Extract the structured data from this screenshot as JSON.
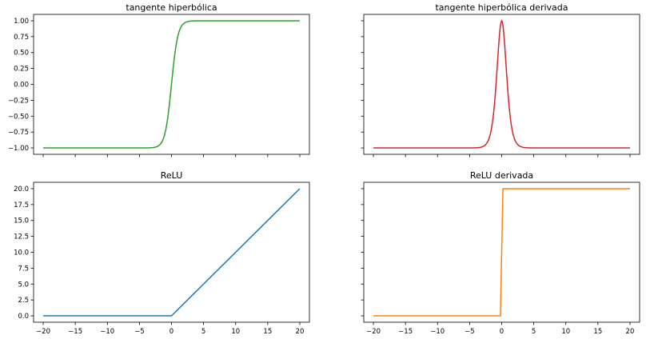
{
  "chart_data": [
    {
      "type": "line",
      "title": "tangente hiperbólica",
      "color": "#2ca02c",
      "function": "tanh",
      "xlim": [
        -21.5,
        21.5
      ],
      "ylim": [
        -1.1,
        1.1
      ],
      "x_ticks": [
        -20,
        -15,
        -10,
        -5,
        0,
        5,
        10,
        15,
        20
      ],
      "x_tick_labels": [],
      "y_ticks": [
        -1.0,
        -0.75,
        -0.5,
        -0.25,
        0.0,
        0.25,
        0.5,
        0.75,
        1.0
      ],
      "y_tick_labels": [
        "−1.00",
        "−0.75",
        "−0.50",
        "−0.25",
        "0.00",
        "0.25",
        "0.50",
        "0.75",
        "1.00"
      ],
      "series": [
        {
          "x": [
            -20,
            -5,
            -2,
            -1,
            -0.5,
            0,
            0.5,
            1,
            2,
            5,
            20
          ],
          "y": [
            -1,
            -1,
            -0.964,
            -0.762,
            -0.462,
            0,
            0.462,
            0.762,
            0.964,
            1,
            1
          ]
        }
      ]
    },
    {
      "type": "line",
      "title": "tangente hiperbólica derivada",
      "color": "#d62728",
      "function": "tanh_derivative",
      "xlim": [
        -21.5,
        21.5
      ],
      "ylim": [
        -1.1,
        1.1
      ],
      "x_ticks": [
        -20,
        -15,
        -10,
        -5,
        0,
        5,
        10,
        15,
        20
      ],
      "x_tick_labels": [],
      "y_ticks": [
        -1.0,
        -0.75,
        -0.5,
        -0.25,
        0.0,
        0.25,
        0.5,
        0.75,
        1.0
      ],
      "y_tick_labels": [],
      "series": [
        {
          "x": [
            -20,
            -5,
            -2,
            -1,
            0,
            1,
            2,
            5,
            20
          ],
          "y": [
            -1,
            -1,
            -0.86,
            -0.16,
            1,
            -0.16,
            -0.86,
            -1,
            -1
          ]
        }
      ]
    },
    {
      "type": "line",
      "title": "ReLU",
      "color": "#1f77b4",
      "function": "relu",
      "xlim": [
        -21.5,
        21.5
      ],
      "ylim": [
        -1,
        21
      ],
      "x_ticks": [
        -20,
        -15,
        -10,
        -5,
        0,
        5,
        10,
        15,
        20
      ],
      "x_tick_labels": [
        "−20",
        "−15",
        "−10",
        "−5",
        "0",
        "5",
        "10",
        "15",
        "20"
      ],
      "y_ticks": [
        0,
        2.5,
        5,
        7.5,
        10,
        12.5,
        15,
        17.5,
        20
      ],
      "y_tick_labels": [
        "0.0",
        "2.5",
        "5.0",
        "7.5",
        "10.0",
        "12.5",
        "15.0",
        "17.5",
        "20.0"
      ],
      "series": [
        {
          "x": [
            -20,
            0,
            20
          ],
          "y": [
            0,
            0,
            20
          ]
        }
      ]
    },
    {
      "type": "line",
      "title": "ReLU derivada",
      "color": "#ff7f0e",
      "function": "relu_derivative",
      "xlim": [
        -21.5,
        21.5
      ],
      "ylim": [
        -1,
        21
      ],
      "x_ticks": [
        -20,
        -15,
        -10,
        -5,
        0,
        5,
        10,
        15,
        20
      ],
      "x_tick_labels": [
        "−20",
        "−15",
        "−10",
        "−5",
        "0",
        "5",
        "10",
        "15",
        "20"
      ],
      "y_ticks": [
        0,
        2.5,
        5,
        7.5,
        10,
        12.5,
        15,
        17.5,
        20
      ],
      "y_tick_labels": [],
      "series": [
        {
          "x": [
            -20,
            -0.2,
            0.2,
            20
          ],
          "y": [
            0,
            0,
            20,
            20
          ]
        }
      ]
    }
  ]
}
